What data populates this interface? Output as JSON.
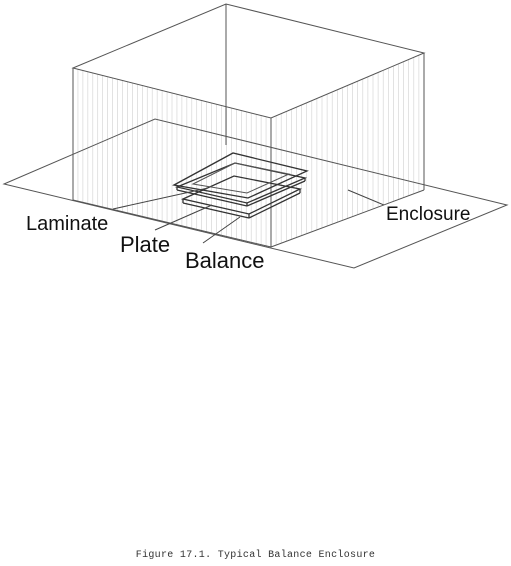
{
  "labels": {
    "laminate": "Laminate",
    "plate": "Plate",
    "balance": "Balance",
    "enclosure": "Enclosure"
  },
  "caption": "Figure 17.1.  Typical Balance Enclosure"
}
